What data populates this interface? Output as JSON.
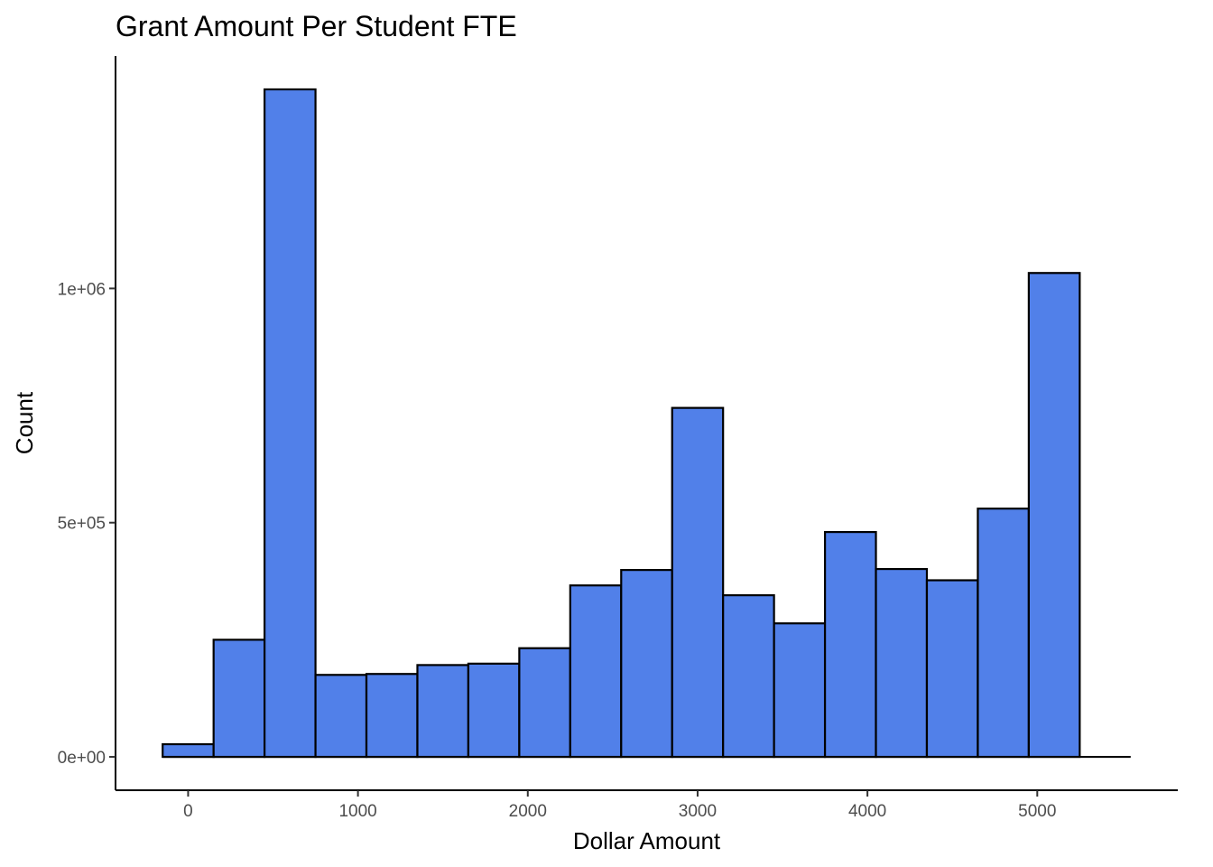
{
  "chart_data": {
    "type": "bar",
    "title": "Grant Amount Per Student FTE",
    "xlabel": "Dollar Amount",
    "ylabel": "Count",
    "bin_width": 300,
    "bins": [
      {
        "start": -150,
        "end": 150,
        "count": 27000
      },
      {
        "start": 150,
        "end": 450,
        "count": 250000
      },
      {
        "start": 450,
        "end": 750,
        "count": 1425000
      },
      {
        "start": 750,
        "end": 1050,
        "count": 175000
      },
      {
        "start": 1050,
        "end": 1350,
        "count": 177000
      },
      {
        "start": 1350,
        "end": 1650,
        "count": 196000
      },
      {
        "start": 1650,
        "end": 1950,
        "count": 199000
      },
      {
        "start": 1950,
        "end": 2250,
        "count": 232000
      },
      {
        "start": 2250,
        "end": 2550,
        "count": 366000
      },
      {
        "start": 2550,
        "end": 2850,
        "count": 399000
      },
      {
        "start": 2850,
        "end": 3150,
        "count": 745000
      },
      {
        "start": 3150,
        "end": 3450,
        "count": 345000
      },
      {
        "start": 3450,
        "end": 3750,
        "count": 285000
      },
      {
        "start": 3750,
        "end": 4050,
        "count": 480000
      },
      {
        "start": 4050,
        "end": 4350,
        "count": 401000
      },
      {
        "start": 4350,
        "end": 4650,
        "count": 377000
      },
      {
        "start": 4650,
        "end": 4950,
        "count": 530000
      },
      {
        "start": 4950,
        "end": 5250,
        "count": 1033000
      }
    ],
    "baseline_extent": [
      -150,
      5550
    ],
    "xlim": [
      -427.5,
      5827.5
    ],
    "ylim": [
      -71250,
      1496250
    ],
    "xticks": [
      {
        "value": 0,
        "label": "0"
      },
      {
        "value": 1000,
        "label": "1000"
      },
      {
        "value": 2000,
        "label": "2000"
      },
      {
        "value": 3000,
        "label": "3000"
      },
      {
        "value": 4000,
        "label": "4000"
      },
      {
        "value": 5000,
        "label": "5000"
      }
    ],
    "yticks": [
      {
        "value": 0,
        "label": "0e+00"
      },
      {
        "value": 500000,
        "label": "5e+05"
      },
      {
        "value": 1000000,
        "label": "1e+06"
      }
    ],
    "bar_fill": "#5180E9",
    "bar_outline": "#000000",
    "grid": false,
    "legend": "none"
  }
}
